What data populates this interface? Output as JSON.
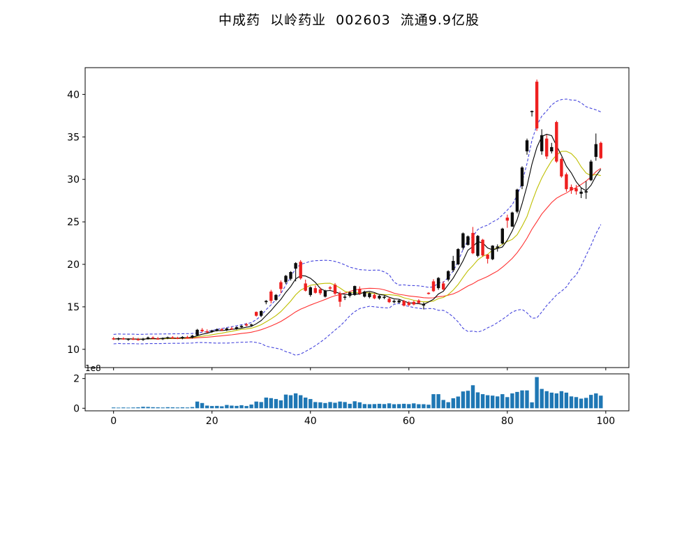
{
  "title": "中成药  以岭药业  002603  流通9.9亿股",
  "header": {
    "sector": "中成药",
    "stock_name": "以岭药业",
    "stock_code": "002603",
    "float_shares": "流通9.9亿股"
  },
  "chart_data": {
    "type": "candlestick",
    "title": "中成药  以岭药业  002603  流通9.9亿股",
    "xlabel": "",
    "ylabel": "",
    "x_is_trading_day_index": true,
    "xticks": [
      0,
      20,
      40,
      60,
      80,
      100
    ],
    "yticks": [
      10,
      15,
      20,
      25,
      30,
      35,
      40
    ],
    "xlim": [
      -5.77,
      104.7
    ],
    "ylim": [
      7.85,
      43.15
    ],
    "volume_yticks": [
      0,
      2
    ],
    "volume_scale_label": "1e8",
    "volume_ylim": [
      -0.17,
      2.31
    ],
    "grid": false,
    "legend": "none",
    "overlays": [
      {
        "name": "MA5",
        "window": 5,
        "color": "#000000",
        "style": "solid"
      },
      {
        "name": "MA10",
        "window": 10,
        "color": "#bfbf00",
        "style": "solid"
      },
      {
        "name": "MA20",
        "window": 20,
        "color": "#ff3030",
        "style": "solid"
      },
      {
        "name": "BOLL-upper(20,2)",
        "color": "#4444dd",
        "style": "dashed"
      },
      {
        "name": "BOLL-lower(20,2)",
        "color": "#4444dd",
        "style": "dashed"
      }
    ],
    "colors": {
      "up": "#0d0d0d",
      "down": "#ee2020",
      "volume": "#1f77b4",
      "frame": "#000000"
    },
    "open": [
      11.3,
      11.2,
      11.3,
      11.16,
      11.25,
      11.2,
      11.1,
      11.25,
      11.4,
      11.28,
      11.22,
      11.32,
      11.42,
      11.35,
      11.28,
      11.45,
      11.38,
      11.65,
      12.3,
      12.12,
      12.05,
      12.22,
      12.36,
      12.25,
      12.46,
      12.4,
      12.6,
      12.95,
      12.8,
      14.4,
      13.95,
      15.55,
      16.8,
      15.8,
      17.9,
      17.9,
      18.3,
      19.5,
      20.3,
      17.75,
      16.4,
      17.2,
      17.05,
      16.2,
      17.3,
      17.6,
      16.6,
      16.1,
      16.3,
      16.4,
      17.1,
      16.2,
      16.15,
      16.4,
      16.0,
      16.05,
      15.95,
      15.55,
      15.52,
      15.7,
      15.52,
      15.58,
      15.75,
      15.15,
      16.65,
      18.0,
      17.2,
      17.75,
      18.2,
      19.3,
      20.0,
      21.95,
      22.3,
      23.7,
      21.0,
      22.9,
      21.15,
      20.6,
      21.95,
      22.45,
      25.5,
      24.45,
      26.2,
      29.2,
      33.3,
      37.95,
      41.5,
      33.3,
      34.8,
      33.3,
      36.75,
      32.4,
      30.6,
      29.1,
      28.95,
      28.3,
      28.45,
      29.9,
      32.65,
      34.3
    ],
    "high": [
      11.45,
      11.4,
      11.42,
      11.3,
      11.45,
      11.35,
      11.35,
      11.5,
      11.52,
      11.45,
      11.4,
      11.5,
      11.55,
      11.48,
      11.55,
      11.6,
      11.7,
      12.4,
      12.5,
      12.35,
      12.3,
      12.45,
      12.5,
      12.55,
      12.65,
      12.7,
      12.85,
      13.1,
      13.0,
      14.45,
      14.6,
      15.8,
      17.0,
      16.5,
      18.1,
      18.75,
      19.2,
      20.25,
      20.5,
      18.2,
      17.4,
      17.5,
      17.3,
      17.0,
      17.45,
      17.8,
      16.8,
      16.4,
      16.8,
      17.5,
      17.4,
      16.9,
      16.7,
      16.6,
      16.4,
      16.3,
      16.15,
      15.85,
      15.85,
      15.82,
      15.68,
      15.72,
      15.9,
      15.52,
      16.72,
      18.25,
      18.5,
      18.0,
      19.3,
      21.0,
      21.9,
      23.75,
      23.4,
      24.4,
      23.45,
      23.0,
      21.2,
      22.25,
      22.35,
      24.3,
      25.85,
      26.2,
      28.9,
      31.55,
      34.8,
      38.1,
      41.75,
      35.9,
      35.25,
      34.3,
      36.9,
      32.6,
      30.8,
      29.4,
      29.35,
      29.0,
      29.8,
      32.3,
      35.4,
      34.45
    ],
    "low": [
      11.1,
      11.05,
      11.12,
      11.0,
      11.1,
      11.02,
      11.0,
      11.15,
      11.2,
      11.15,
      11.1,
      11.2,
      11.25,
      11.2,
      11.18,
      11.3,
      11.28,
      11.55,
      12.0,
      11.95,
      11.95,
      12.1,
      12.15,
      12.15,
      12.3,
      12.3,
      12.5,
      12.7,
      12.65,
      13.85,
      13.8,
      15.3,
      15.4,
      15.7,
      16.6,
      17.7,
      18.1,
      18.0,
      18.2,
      16.8,
      16.2,
      16.55,
      16.4,
      16.1,
      16.95,
      16.4,
      15.0,
      15.8,
      16.1,
      16.3,
      16.4,
      16.1,
      16.0,
      15.9,
      15.85,
      15.9,
      15.45,
      15.42,
      15.4,
      15.05,
      15.1,
      15.18,
      15.35,
      14.7,
      16.45,
      16.75,
      17.0,
      16.95,
      18.0,
      19.1,
      19.9,
      21.7,
      22.2,
      21.2,
      20.85,
      20.9,
      20.1,
      20.5,
      21.5,
      22.35,
      24.3,
      24.4,
      26.0,
      28.85,
      32.9,
      37.4,
      35.7,
      32.9,
      32.4,
      33.05,
      31.95,
      30.2,
      28.55,
      28.3,
      28.2,
      27.8,
      27.7,
      29.8,
      32.2,
      32.4
    ],
    "close": [
      11.2,
      11.3,
      11.16,
      11.25,
      11.2,
      11.1,
      11.25,
      11.4,
      11.28,
      11.22,
      11.32,
      11.42,
      11.35,
      11.28,
      11.45,
      11.38,
      11.6,
      12.3,
      12.12,
      12.05,
      12.22,
      12.36,
      12.25,
      12.46,
      12.4,
      12.6,
      12.75,
      12.8,
      12.92,
      13.95,
      14.5,
      15.7,
      15.7,
      16.4,
      17.1,
      18.65,
      19.1,
      20.15,
      18.35,
      16.9,
      17.3,
      16.65,
      16.6,
      16.9,
      17.15,
      16.55,
      15.6,
      16.2,
      16.7,
      17.45,
      16.55,
      16.8,
      16.6,
      16.0,
      16.3,
      16.18,
      15.55,
      15.7,
      15.75,
      15.15,
      15.22,
      15.28,
      15.45,
      15.32,
      16.55,
      16.85,
      18.4,
      17.05,
      19.2,
      20.4,
      21.8,
      23.65,
      23.3,
      21.3,
      23.35,
      21.05,
      20.65,
      22.2,
      22.1,
      24.2,
      25.15,
      26.1,
      28.8,
      31.4,
      34.6,
      38.05,
      36.0,
      35.2,
      32.7,
      33.8,
      32.1,
      30.35,
      28.85,
      28.7,
      28.6,
      28.55,
      28.6,
      32.1,
      34.15,
      32.5
    ],
    "volume_e8": [
      0.05,
      0.04,
      0.05,
      0.04,
      0.05,
      0.06,
      0.1,
      0.09,
      0.07,
      0.06,
      0.05,
      0.07,
      0.06,
      0.05,
      0.06,
      0.05,
      0.08,
      0.45,
      0.35,
      0.18,
      0.15,
      0.16,
      0.13,
      0.22,
      0.18,
      0.16,
      0.2,
      0.15,
      0.25,
      0.45,
      0.42,
      0.72,
      0.68,
      0.62,
      0.53,
      0.92,
      0.88,
      1.0,
      0.88,
      0.72,
      0.62,
      0.42,
      0.4,
      0.35,
      0.42,
      0.37,
      0.45,
      0.42,
      0.3,
      0.47,
      0.4,
      0.28,
      0.27,
      0.28,
      0.3,
      0.28,
      0.33,
      0.27,
      0.28,
      0.3,
      0.28,
      0.33,
      0.27,
      0.27,
      0.24,
      0.95,
      0.95,
      0.56,
      0.41,
      0.67,
      0.79,
      1.13,
      1.18,
      1.55,
      1.07,
      0.95,
      0.88,
      0.85,
      0.8,
      0.95,
      0.75,
      1.0,
      1.1,
      1.2,
      1.2,
      0.4,
      2.1,
      1.3,
      1.15,
      1.05,
      1.0,
      1.15,
      1.05,
      0.8,
      0.75,
      0.65,
      0.7,
      0.9,
      1.0,
      0.85
    ]
  }
}
